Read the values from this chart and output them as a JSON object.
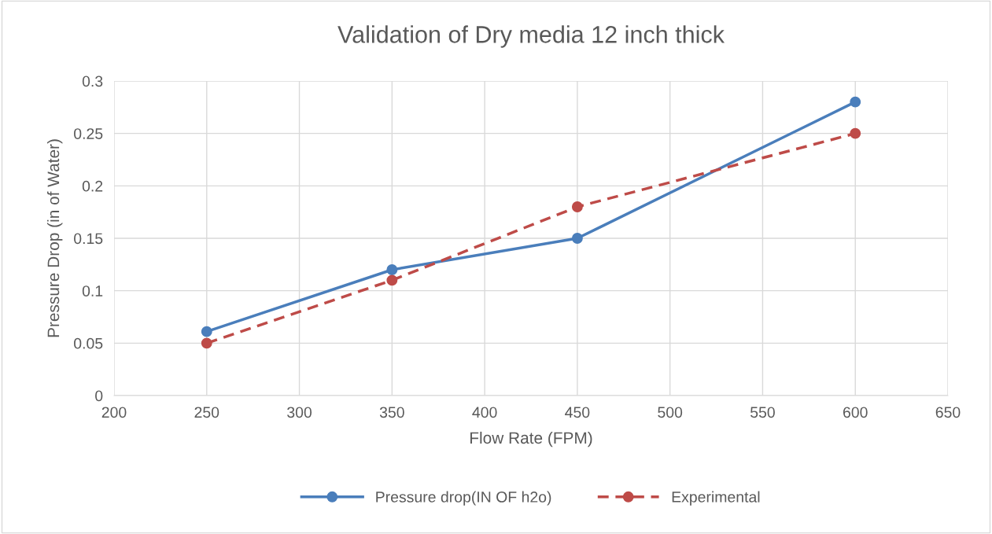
{
  "chart_data": {
    "type": "line",
    "title": "Validation of Dry media 12 inch thick",
    "xlabel": "Flow Rate (FPM)",
    "ylabel": "Pressure Drop (in of Water)",
    "x": [
      250,
      350,
      450,
      600
    ],
    "series": [
      {
        "name": "Pressure drop(IN OF h2o)",
        "color": "#4a7ebb",
        "values": [
          0.061,
          0.12,
          0.15,
          0.28
        ],
        "line_style": "solid"
      },
      {
        "name": "Experimental",
        "color": "#be4b48",
        "values": [
          0.05,
          0.11,
          0.18,
          0.25
        ],
        "line_style": "dashed"
      }
    ],
    "xlim": [
      200,
      650
    ],
    "xticks": [
      200,
      250,
      300,
      350,
      400,
      450,
      500,
      550,
      600,
      650
    ],
    "ylim": [
      0,
      0.3
    ],
    "yticks": [
      {
        "value": 0,
        "label": "0"
      },
      0.05,
      0.1,
      0.15,
      0.2,
      0.25,
      0.3
    ],
    "grid": true,
    "legend": "bottom",
    "marker": "circle"
  }
}
